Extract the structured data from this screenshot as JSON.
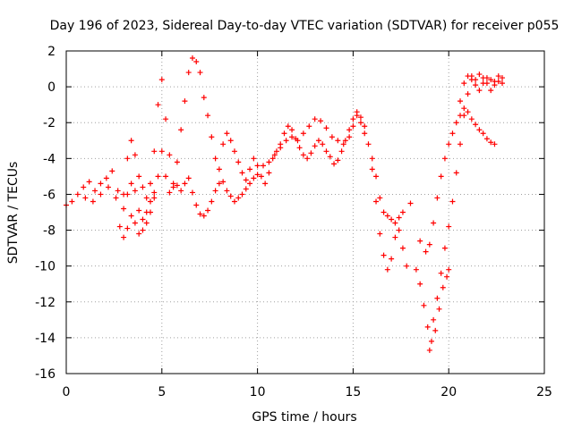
{
  "chart_data": {
    "type": "scatter",
    "title": "Day 196 of 2023, Sidereal Day-to-day VTEC variation (SDTVAR) for receiver p055",
    "xlabel": "GPS time / hours",
    "ylabel": "SDTVAR / TECUs",
    "xlim": [
      0,
      25
    ],
    "ylim": [
      -16,
      2
    ],
    "xticks": [
      "0",
      "5",
      "10",
      "15",
      "20",
      "25"
    ],
    "yticks": [
      "-16",
      "-14",
      "-12",
      "-10",
      "-8",
      "-6",
      "-4",
      "-2",
      "0",
      "2"
    ],
    "grid": true,
    "marker": "+",
    "color": "#ff0000",
    "series": [
      {
        "name": "SDTVAR",
        "points": [
          [
            0.0,
            -6.6
          ],
          [
            0.3,
            -6.4
          ],
          [
            0.6,
            -6.0
          ],
          [
            0.9,
            -5.6
          ],
          [
            1.2,
            -5.3
          ],
          [
            1.5,
            -5.8
          ],
          [
            1.8,
            -5.4
          ],
          [
            2.1,
            -5.1
          ],
          [
            2.4,
            -4.7
          ],
          [
            2.7,
            -5.8
          ],
          [
            3.0,
            -6.8
          ],
          [
            3.2,
            -6.0
          ],
          [
            3.4,
            -5.4
          ],
          [
            3.6,
            -5.8
          ],
          [
            3.8,
            -6.9
          ],
          [
            4.0,
            -7.4
          ],
          [
            4.2,
            -7.0
          ],
          [
            4.4,
            -6.4
          ],
          [
            4.6,
            -5.9
          ],
          [
            4.8,
            -5.0
          ],
          [
            5.0,
            -3.6
          ],
          [
            5.2,
            -5.0
          ],
          [
            5.4,
            -5.9
          ],
          [
            5.6,
            -5.4
          ],
          [
            5.8,
            -5.5
          ],
          [
            6.0,
            -5.8
          ],
          [
            6.2,
            -5.4
          ],
          [
            6.4,
            -5.1
          ],
          [
            6.6,
            -5.9
          ],
          [
            6.8,
            -6.6
          ],
          [
            7.0,
            -7.1
          ],
          [
            7.2,
            -7.2
          ],
          [
            7.4,
            -6.9
          ],
          [
            7.6,
            -6.4
          ],
          [
            7.8,
            -5.8
          ],
          [
            8.0,
            -5.4
          ],
          [
            8.2,
            -5.3
          ],
          [
            8.4,
            -5.8
          ],
          [
            8.6,
            -6.1
          ],
          [
            8.8,
            -6.4
          ],
          [
            9.0,
            -6.2
          ],
          [
            9.2,
            -6.0
          ],
          [
            9.4,
            -5.7
          ],
          [
            9.6,
            -5.4
          ],
          [
            9.8,
            -5.1
          ],
          [
            10.0,
            -4.9
          ],
          [
            10.3,
            -4.4
          ],
          [
            10.6,
            -4.2
          ],
          [
            10.9,
            -3.8
          ],
          [
            11.2,
            -3.4
          ],
          [
            11.5,
            -3.0
          ],
          [
            11.8,
            -2.8
          ],
          [
            12.1,
            -3.0
          ],
          [
            12.4,
            -2.6
          ],
          [
            12.7,
            -2.2
          ],
          [
            13.0,
            -1.8
          ],
          [
            13.3,
            -1.9
          ],
          [
            13.6,
            -2.3
          ],
          [
            13.9,
            -2.8
          ],
          [
            14.2,
            -3.0
          ],
          [
            14.5,
            -3.2
          ],
          [
            14.8,
            -2.8
          ],
          [
            15.0,
            -2.2
          ],
          [
            15.2,
            -1.6
          ],
          [
            15.4,
            -2.0
          ],
          [
            15.6,
            -2.6
          ],
          [
            15.8,
            -3.2
          ],
          [
            16.0,
            -4.0
          ],
          [
            16.2,
            -5.0
          ],
          [
            16.4,
            -6.2
          ],
          [
            16.6,
            -7.0
          ],
          [
            16.8,
            -7.2
          ],
          [
            17.0,
            -7.4
          ],
          [
            17.2,
            -7.6
          ],
          [
            17.4,
            -7.3
          ],
          [
            17.6,
            -7.0
          ],
          [
            18.0,
            -6.5
          ],
          [
            18.5,
            -8.6
          ],
          [
            18.8,
            -9.2
          ],
          [
            19.0,
            -8.8
          ],
          [
            19.2,
            -7.6
          ],
          [
            19.4,
            -6.2
          ],
          [
            19.6,
            -5.0
          ],
          [
            19.8,
            -4.0
          ],
          [
            20.0,
            -3.2
          ],
          [
            20.2,
            -2.6
          ],
          [
            20.4,
            -2.0
          ],
          [
            20.6,
            -1.6
          ],
          [
            20.8,
            -1.2
          ],
          [
            21.0,
            -1.4
          ],
          [
            21.2,
            -1.8
          ],
          [
            21.4,
            -2.1
          ],
          [
            21.6,
            -2.4
          ],
          [
            21.8,
            -2.6
          ],
          [
            22.0,
            -2.9
          ],
          [
            22.2,
            -3.1
          ],
          [
            22.4,
            -3.2
          ],
          [
            16.0,
            -4.6
          ],
          [
            16.2,
            -6.4
          ],
          [
            16.4,
            -8.2
          ],
          [
            16.6,
            -9.4
          ],
          [
            16.8,
            -10.2
          ],
          [
            17.0,
            -9.6
          ],
          [
            17.2,
            -8.4
          ],
          [
            17.4,
            -8.0
          ],
          [
            17.6,
            -9.0
          ],
          [
            17.8,
            -10.0
          ],
          [
            18.3,
            -10.2
          ],
          [
            18.5,
            -11.0
          ],
          [
            18.7,
            -12.2
          ],
          [
            18.9,
            -13.4
          ],
          [
            19.1,
            -14.2
          ],
          [
            19.3,
            -13.6
          ],
          [
            19.5,
            -12.4
          ],
          [
            19.7,
            -11.2
          ],
          [
            19.9,
            -10.6
          ],
          [
            20.0,
            -10.2
          ],
          [
            19.0,
            -14.7
          ],
          [
            19.2,
            -13.0
          ],
          [
            19.4,
            -11.8
          ],
          [
            19.6,
            -10.4
          ],
          [
            19.8,
            -9.0
          ],
          [
            20.0,
            -7.8
          ],
          [
            20.2,
            -6.4
          ],
          [
            20.4,
            -4.8
          ],
          [
            20.6,
            -3.2
          ],
          [
            20.8,
            -1.6
          ],
          [
            21.0,
            -0.4
          ],
          [
            21.2,
            0.4
          ],
          [
            21.4,
            0.1
          ],
          [
            21.6,
            -0.2
          ],
          [
            21.8,
            0.2
          ],
          [
            22.0,
            0.5
          ],
          [
            22.2,
            0.4
          ],
          [
            22.4,
            0.1
          ],
          [
            22.6,
            0.3
          ],
          [
            22.8,
            0.5
          ],
          [
            20.6,
            -0.8
          ],
          [
            20.8,
            0.2
          ],
          [
            21.0,
            0.6
          ],
          [
            21.2,
            0.6
          ],
          [
            21.4,
            0.4
          ],
          [
            21.6,
            0.7
          ],
          [
            21.8,
            0.5
          ],
          [
            22.0,
            0.2
          ],
          [
            22.2,
            -0.2
          ],
          [
            22.4,
            0.3
          ],
          [
            22.6,
            0.6
          ],
          [
            22.8,
            0.2
          ],
          [
            1.0,
            -6.2
          ],
          [
            1.4,
            -6.4
          ],
          [
            1.8,
            -6.0
          ],
          [
            2.2,
            -5.6
          ],
          [
            2.6,
            -6.2
          ],
          [
            2.8,
            -7.8
          ],
          [
            3.0,
            -8.4
          ],
          [
            3.2,
            -7.9
          ],
          [
            3.4,
            -7.2
          ],
          [
            3.6,
            -7.6
          ],
          [
            3.8,
            -8.2
          ],
          [
            4.0,
            -8.0
          ],
          [
            4.2,
            -7.6
          ],
          [
            4.4,
            -7.0
          ],
          [
            4.6,
            -6.2
          ],
          [
            3.0,
            -6.0
          ],
          [
            3.2,
            -4.0
          ],
          [
            3.4,
            -3.0
          ],
          [
            3.6,
            -3.8
          ],
          [
            3.8,
            -5.0
          ],
          [
            4.0,
            -5.6
          ],
          [
            4.2,
            -6.2
          ],
          [
            4.4,
            -5.4
          ],
          [
            4.6,
            -3.6
          ],
          [
            4.8,
            -1.0
          ],
          [
            5.0,
            0.4
          ],
          [
            5.2,
            -1.8
          ],
          [
            5.4,
            -3.8
          ],
          [
            5.6,
            -5.6
          ],
          [
            5.8,
            -4.2
          ],
          [
            6.0,
            -2.4
          ],
          [
            6.2,
            -0.8
          ],
          [
            6.4,
            0.8
          ],
          [
            6.6,
            1.6
          ],
          [
            6.8,
            1.4
          ],
          [
            7.0,
            0.8
          ],
          [
            7.2,
            -0.6
          ],
          [
            7.4,
            -1.6
          ],
          [
            7.6,
            -2.8
          ],
          [
            7.8,
            -4.0
          ],
          [
            8.0,
            -4.6
          ],
          [
            8.2,
            -3.2
          ],
          [
            8.4,
            -2.6
          ],
          [
            8.6,
            -3.0
          ],
          [
            8.8,
            -3.6
          ],
          [
            9.0,
            -4.2
          ],
          [
            9.2,
            -4.8
          ],
          [
            9.4,
            -5.2
          ],
          [
            9.6,
            -4.6
          ],
          [
            9.8,
            -4.0
          ],
          [
            10.0,
            -4.4
          ],
          [
            10.2,
            -5.0
          ],
          [
            10.4,
            -5.4
          ],
          [
            10.6,
            -4.8
          ],
          [
            10.8,
            -4.0
          ],
          [
            11.0,
            -3.6
          ],
          [
            11.2,
            -3.2
          ],
          [
            11.4,
            -2.6
          ],
          [
            11.6,
            -2.2
          ],
          [
            11.8,
            -2.4
          ],
          [
            12.0,
            -2.9
          ],
          [
            12.2,
            -3.4
          ],
          [
            12.4,
            -3.8
          ],
          [
            12.6,
            -4.0
          ],
          [
            12.8,
            -3.7
          ],
          [
            13.0,
            -3.3
          ],
          [
            13.2,
            -3.0
          ],
          [
            13.4,
            -3.2
          ],
          [
            13.6,
            -3.6
          ],
          [
            13.8,
            -3.9
          ],
          [
            14.0,
            -4.3
          ],
          [
            14.2,
            -4.1
          ],
          [
            14.4,
            -3.6
          ],
          [
            14.6,
            -3.0
          ],
          [
            14.8,
            -2.4
          ],
          [
            15.0,
            -1.8
          ],
          [
            15.2,
            -1.4
          ],
          [
            15.4,
            -1.7
          ],
          [
            15.6,
            -2.2
          ]
        ]
      }
    ]
  }
}
